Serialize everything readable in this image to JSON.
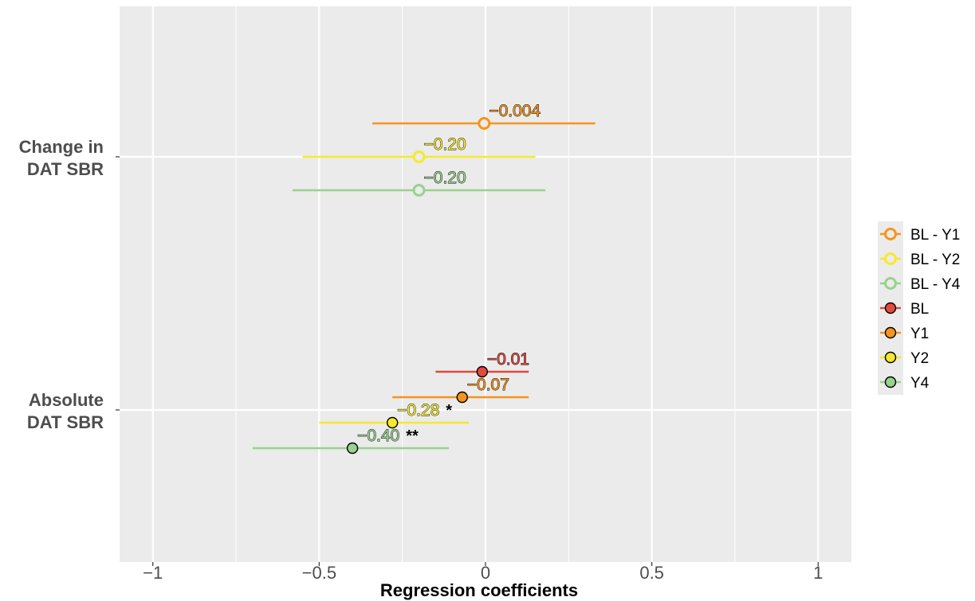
{
  "chart_data": {
    "type": "forest",
    "xlabel": "Regression coefficients",
    "xlim": [
      -1.1,
      1.1
    ],
    "x_ticks": [
      -1,
      -0.5,
      0,
      0.5,
      1
    ],
    "x_tick_labels": [
      "-1",
      "-0.5",
      "0",
      "0.5",
      "1"
    ],
    "grid": true,
    "legend_position": "right",
    "categories": [
      {
        "key": "change",
        "label_lines": [
          "Change in",
          "DAT SBR"
        ]
      },
      {
        "key": "absolute",
        "label_lines": [
          "Absolute",
          "DAT SBR"
        ]
      }
    ],
    "series": [
      {
        "name": "BL - Y1",
        "category": "change",
        "slot": -1,
        "estimate": -0.004,
        "ci": [
          -0.34,
          0.33
        ],
        "label": "-0.004",
        "sig": "",
        "color": "#F7941D",
        "filled": false
      },
      {
        "name": "BL - Y2",
        "category": "change",
        "slot": 0,
        "estimate": -0.2,
        "ci": [
          -0.55,
          0.15
        ],
        "label": "-0.20",
        "sig": "",
        "color": "#F5E92E",
        "filled": false
      },
      {
        "name": "BL - Y4",
        "category": "change",
        "slot": 1,
        "estimate": -0.2,
        "ci": [
          -0.58,
          0.18
        ],
        "label": "-0.20",
        "sig": "",
        "color": "#99D18F",
        "filled": false
      },
      {
        "name": "BL",
        "category": "absolute",
        "slot": -1.5,
        "estimate": -0.01,
        "ci": [
          -0.15,
          0.13
        ],
        "label": "-0.01",
        "sig": "",
        "color": "#E04A3F",
        "filled": true
      },
      {
        "name": "Y1",
        "category": "absolute",
        "slot": -0.5,
        "estimate": -0.07,
        "ci": [
          -0.28,
          0.13
        ],
        "label": "-0.07",
        "sig": "",
        "color": "#F7941D",
        "filled": true
      },
      {
        "name": "Y2",
        "category": "absolute",
        "slot": 0.5,
        "estimate": -0.28,
        "ci": [
          -0.5,
          -0.05
        ],
        "label": "-0.28",
        "sig": "*",
        "color": "#F5E92E",
        "filled": true
      },
      {
        "name": "Y4",
        "category": "absolute",
        "slot": 1.5,
        "estimate": -0.4,
        "ci": [
          -0.7,
          -0.11
        ],
        "label": "-0.40",
        "sig": "**",
        "color": "#99D18F",
        "filled": true
      }
    ]
  }
}
